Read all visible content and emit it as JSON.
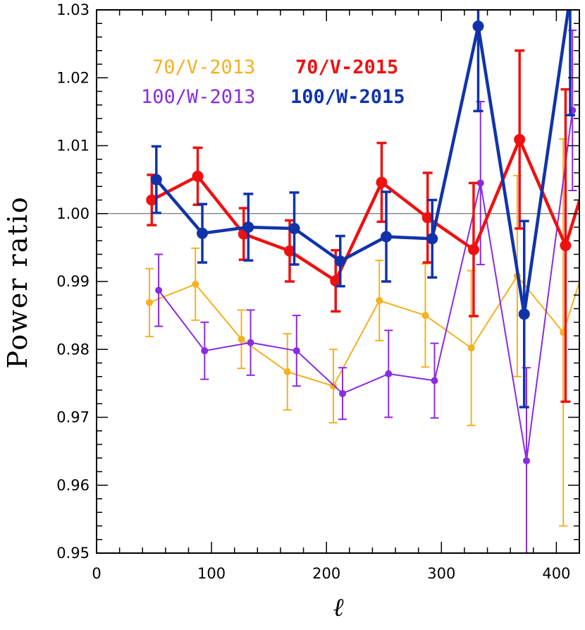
{
  "chart_data": {
    "type": "line",
    "xlabel": "ℓ",
    "ylabel": "Power ratio",
    "xlim": [
      0,
      420
    ],
    "ylim": [
      0.95,
      1.03
    ],
    "xticks": [
      0,
      100,
      200,
      300,
      400
    ],
    "yticks": [
      0.95,
      0.96,
      0.97,
      0.98,
      0.99,
      1.0,
      1.01,
      1.02,
      1.03
    ],
    "xtick_labels": [
      "0",
      "100",
      "200",
      "300",
      "400"
    ],
    "ytick_labels": [
      "0.95",
      "0.96",
      "0.97",
      "0.98",
      "0.99",
      "1.00",
      "1.01",
      "1.02",
      "1.03"
    ],
    "reference_line": 1.0,
    "grid": false,
    "legend_position": "top",
    "series": [
      {
        "name": "70/V-2013",
        "color": "#f5b120",
        "style": "thin",
        "points": [
          {
            "x": 46,
            "y": 0.9869,
            "err": 0.005
          },
          {
            "x": 86,
            "y": 0.9896,
            "err": 0.0053
          },
          {
            "x": 126,
            "y": 0.9815,
            "err": 0.0043
          },
          {
            "x": 166,
            "y": 0.9767,
            "err": 0.0056
          },
          {
            "x": 206,
            "y": 0.9746,
            "err": 0.0054
          },
          {
            "x": 246,
            "y": 0.9872,
            "err": 0.0059
          },
          {
            "x": 286,
            "y": 0.985,
            "err": 0.0076
          },
          {
            "x": 326,
            "y": 0.9802,
            "err": 0.0114
          },
          {
            "x": 366,
            "y": 0.9908,
            "err": 0.0148
          },
          {
            "x": 406,
            "y": 0.9825,
            "err": 0.0285
          },
          {
            "x": 424,
            "y": 0.992,
            "err": 0.0
          }
        ]
      },
      {
        "name": "100/W-2013",
        "color": "#8a2be2",
        "style": "thin",
        "points": [
          {
            "x": 54,
            "y": 0.9887,
            "err": 0.0053
          },
          {
            "x": 94,
            "y": 0.9798,
            "err": 0.0042
          },
          {
            "x": 134,
            "y": 0.981,
            "err": 0.0048
          },
          {
            "x": 174,
            "y": 0.9798,
            "err": 0.0052
          },
          {
            "x": 214,
            "y": 0.9735,
            "err": 0.0038
          },
          {
            "x": 254,
            "y": 0.9764,
            "err": 0.0064
          },
          {
            "x": 294,
            "y": 0.9754,
            "err": 0.0055
          },
          {
            "x": 334,
            "y": 1.0045,
            "err": 0.012
          },
          {
            "x": 374,
            "y": 0.9636,
            "err": 0.0137
          },
          {
            "x": 414,
            "y": 1.0152,
            "err": 0.0118
          }
        ]
      },
      {
        "name": "70/V-2015",
        "color": "#ee1111",
        "style": "thick",
        "points": [
          {
            "x": 48,
            "y": 1.002,
            "err": 0.0037
          },
          {
            "x": 88,
            "y": 1.0055,
            "err": 0.0042
          },
          {
            "x": 128,
            "y": 0.997,
            "err": 0.0038
          },
          {
            "x": 168,
            "y": 0.9945,
            "err": 0.0045
          },
          {
            "x": 208,
            "y": 0.9901,
            "err": 0.0045
          },
          {
            "x": 248,
            "y": 1.0046,
            "err": 0.0058
          },
          {
            "x": 288,
            "y": 0.9994,
            "err": 0.0066
          },
          {
            "x": 328,
            "y": 0.9947,
            "err": 0.0098
          },
          {
            "x": 368,
            "y": 1.0109,
            "err": 0.0131
          },
          {
            "x": 408,
            "y": 0.9953,
            "err": 0.023
          },
          {
            "x": 424,
            "y": 1.004,
            "err": 0.0
          }
        ]
      },
      {
        "name": "100/W-2015",
        "color": "#1133aa",
        "style": "thick",
        "points": [
          {
            "x": 52,
            "y": 1.005,
            "err": 0.0049
          },
          {
            "x": 92,
            "y": 0.9971,
            "err": 0.0043
          },
          {
            "x": 132,
            "y": 0.998,
            "err": 0.0049
          },
          {
            "x": 172,
            "y": 0.9978,
            "err": 0.0053
          },
          {
            "x": 212,
            "y": 0.993,
            "err": 0.0037
          },
          {
            "x": 252,
            "y": 0.9966,
            "err": 0.0066
          },
          {
            "x": 292,
            "y": 0.9963,
            "err": 0.0057
          },
          {
            "x": 332,
            "y": 1.0276,
            "err": 0.0125
          },
          {
            "x": 372,
            "y": 0.9852,
            "err": 0.0137
          },
          {
            "x": 412,
            "y": 1.032,
            "err": 0.0175
          }
        ]
      }
    ]
  }
}
